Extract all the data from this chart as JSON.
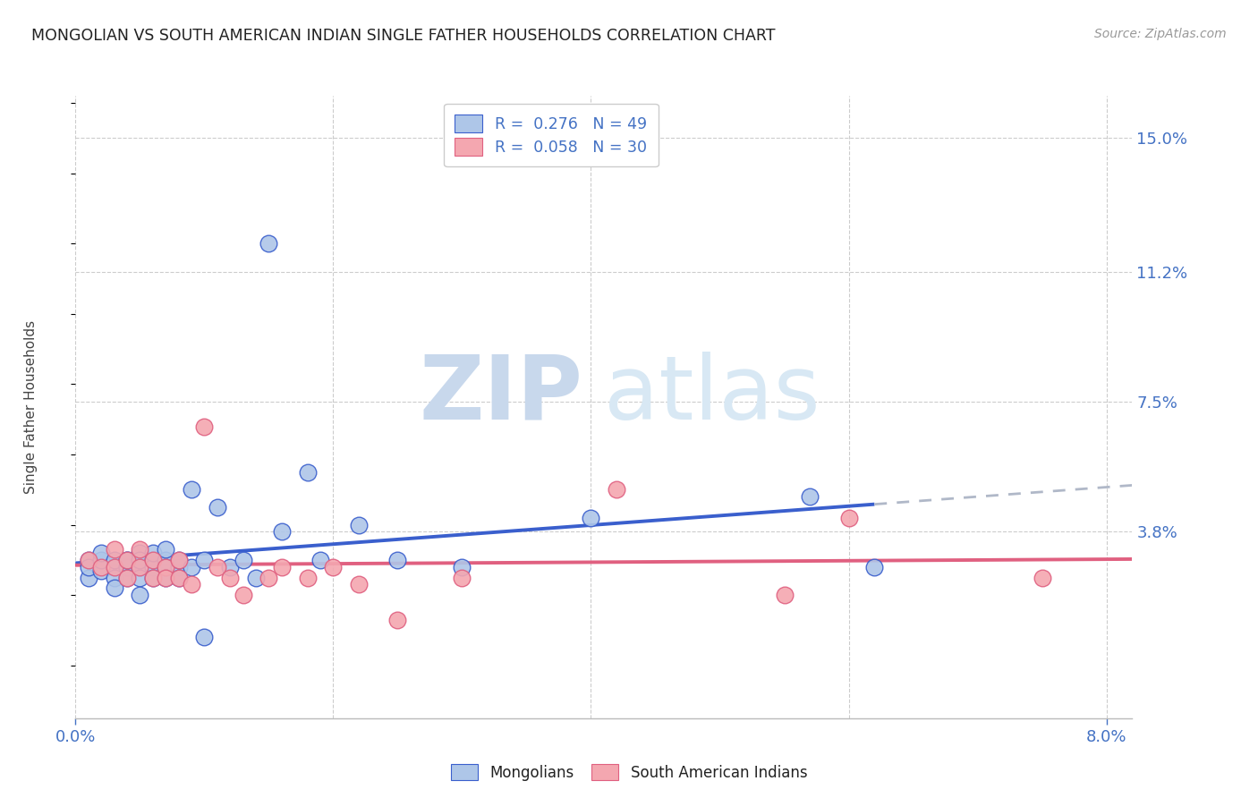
{
  "title": "MONGOLIAN VS SOUTH AMERICAN INDIAN SINGLE FATHER HOUSEHOLDS CORRELATION CHART",
  "source": "Source: ZipAtlas.com",
  "ylabel": "Single Father Households",
  "ytick_labels": [
    "15.0%",
    "11.2%",
    "7.5%",
    "3.8%"
  ],
  "ytick_values": [
    0.15,
    0.112,
    0.075,
    0.038
  ],
  "xlim": [
    0.0,
    0.082
  ],
  "ylim": [
    -0.015,
    0.162
  ],
  "mongolian_R": 0.276,
  "mongolian_N": 49,
  "southamerican_R": 0.058,
  "southamerican_N": 30,
  "mongolian_color": "#aec6e8",
  "southamerican_color": "#f4a7b0",
  "trend_mongolian_color": "#3a5fcd",
  "trend_southamerican_color": "#e06080",
  "trend_mongolian_dash_color": "#b0b8c8",
  "background_color": "#ffffff",
  "watermark_zip": "ZIP",
  "watermark_atlas": "atlas",
  "watermark_color": "#ddeaf7",
  "legend_r1": "R =  0.276   N = 49",
  "legend_r2": "R =  0.058   N = 30",
  "title_color": "#222222",
  "source_color": "#999999",
  "axis_label_color": "#4472c4",
  "mongolian_x": [
    0.001,
    0.001,
    0.001,
    0.002,
    0.002,
    0.002,
    0.003,
    0.003,
    0.003,
    0.003,
    0.004,
    0.004,
    0.004,
    0.004,
    0.004,
    0.005,
    0.005,
    0.005,
    0.005,
    0.005,
    0.006,
    0.006,
    0.006,
    0.006,
    0.007,
    0.007,
    0.007,
    0.007,
    0.008,
    0.008,
    0.008,
    0.009,
    0.009,
    0.01,
    0.01,
    0.011,
    0.012,
    0.013,
    0.014,
    0.015,
    0.016,
    0.018,
    0.019,
    0.022,
    0.025,
    0.03,
    0.04,
    0.057,
    0.062
  ],
  "mongolian_y": [
    0.025,
    0.03,
    0.028,
    0.027,
    0.03,
    0.032,
    0.028,
    0.03,
    0.025,
    0.022,
    0.028,
    0.03,
    0.028,
    0.03,
    0.025,
    0.032,
    0.028,
    0.03,
    0.025,
    0.02,
    0.03,
    0.028,
    0.032,
    0.025,
    0.03,
    0.033,
    0.028,
    0.025,
    0.028,
    0.03,
    0.025,
    0.05,
    0.028,
    0.008,
    0.03,
    0.045,
    0.028,
    0.03,
    0.025,
    0.12,
    0.038,
    0.055,
    0.03,
    0.04,
    0.03,
    0.028,
    0.042,
    0.048,
    0.028
  ],
  "southamerican_x": [
    0.001,
    0.002,
    0.003,
    0.003,
    0.004,
    0.004,
    0.005,
    0.005,
    0.006,
    0.006,
    0.007,
    0.007,
    0.008,
    0.008,
    0.009,
    0.01,
    0.011,
    0.012,
    0.013,
    0.015,
    0.016,
    0.018,
    0.02,
    0.022,
    0.025,
    0.03,
    0.042,
    0.055,
    0.06,
    0.075
  ],
  "southamerican_y": [
    0.03,
    0.028,
    0.033,
    0.028,
    0.025,
    0.03,
    0.028,
    0.033,
    0.03,
    0.025,
    0.028,
    0.025,
    0.03,
    0.025,
    0.023,
    0.068,
    0.028,
    0.025,
    0.02,
    0.025,
    0.028,
    0.025,
    0.028,
    0.023,
    0.013,
    0.025,
    0.05,
    0.02,
    0.042,
    0.025
  ]
}
